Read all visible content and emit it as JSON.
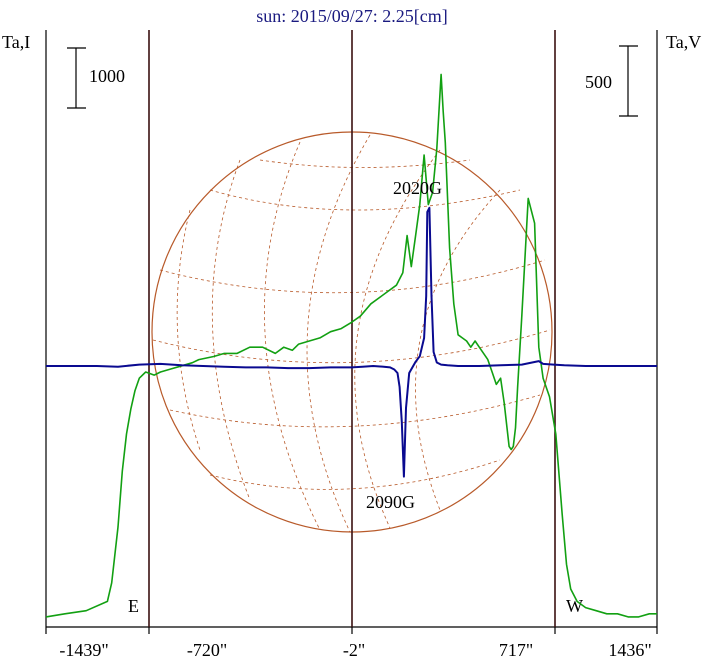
{
  "chart_data": {
    "type": "line",
    "title": "sun: 2015/09/27: 2.25[cm]",
    "left_axis_label": "Ta,I",
    "right_axis_label": "Ta,V",
    "left_scale_bar_label": "1000",
    "right_scale_bar_label": "500",
    "x_tick_labels": [
      "-1439\"",
      "-720\"",
      "-2\"",
      "717\"",
      "1436\""
    ],
    "limb_labels": [
      "E",
      "W"
    ],
    "annotations": [
      "2020G",
      "2090G"
    ],
    "grid": false,
    "colors": {
      "title": "#1a1a80",
      "axes": "#000000",
      "vertical_lines": "#3a1010",
      "intensity": "#12a012",
      "polarization": "#0a0a90",
      "solar_disk": "#b85a2a"
    },
    "series": [
      {
        "x": [
          -1439,
          -1350,
          -1250,
          -1150,
          -1130,
          -1100,
          -1080,
          -1060,
          -1040,
          -1020,
          -1000,
          -970,
          -930,
          -900,
          -850,
          -800,
          -750,
          -720,
          -650,
          -600,
          -540,
          -480,
          -420,
          -360,
          -320,
          -280,
          -250,
          -200,
          -150,
          -100,
          -50,
          -2,
          40,
          90,
          130,
          170,
          210,
          240,
          260,
          280,
          300,
          320,
          340,
          360,
          380,
          400,
          420,
          430,
          440,
          460,
          480,
          500,
          520,
          540,
          560,
          580,
          600,
          620,
          640,
          660,
          680,
          700,
          717,
          730,
          740,
          750,
          760,
          770,
          780,
          800,
          830,
          860,
          880,
          900,
          930,
          960,
          990,
          1010,
          1030,
          1060,
          1100,
          1150,
          1200,
          1250,
          1300,
          1350,
          1400,
          1436
        ],
        "values": [
          0.01,
          0.02,
          0.03,
          0.06,
          0.12,
          0.3,
          0.48,
          0.6,
          0.68,
          0.74,
          0.78,
          0.8,
          0.79,
          0.8,
          0.81,
          0.82,
          0.83,
          0.84,
          0.85,
          0.86,
          0.86,
          0.88,
          0.88,
          0.86,
          0.88,
          0.87,
          0.89,
          0.9,
          0.91,
          0.93,
          0.94,
          0.96,
          0.98,
          1.02,
          1.04,
          1.06,
          1.08,
          1.12,
          1.24,
          1.14,
          1.24,
          1.34,
          1.5,
          1.34,
          1.38,
          1.52,
          1.76,
          1.64,
          1.54,
          1.2,
          1.02,
          0.92,
          0.91,
          0.9,
          0.88,
          0.9,
          0.88,
          0.86,
          0.84,
          0.8,
          0.76,
          0.78,
          0.7,
          0.62,
          0.56,
          0.55,
          0.56,
          0.62,
          0.75,
          0.98,
          1.36,
          1.28,
          0.88,
          0.78,
          0.72,
          0.6,
          0.34,
          0.18,
          0.1,
          0.06,
          0.04,
          0.03,
          0.02,
          0.02,
          0.01,
          0.01,
          0.02,
          0.02
        ]
      },
      {
        "x": [
          -1439,
          -1300,
          -1200,
          -1100,
          -1000,
          -900,
          -800,
          -700,
          -600,
          -500,
          -400,
          -300,
          -200,
          -100,
          0,
          50,
          100,
          150,
          180,
          200,
          215,
          225,
          235,
          245,
          255,
          270,
          300,
          320,
          340,
          350,
          355,
          365,
          375,
          385,
          400,
          420,
          450,
          500,
          600,
          700,
          800,
          880,
          900,
          950,
          1000,
          1100,
          1200,
          1300,
          1436
        ],
        "values": [
          0,
          0,
          0,
          -0.01,
          0.02,
          0.03,
          0.01,
          0,
          -0.01,
          -0.02,
          -0.02,
          -0.03,
          -0.03,
          -0.02,
          -0.02,
          -0.01,
          0,
          -0.01,
          -0.02,
          -0.05,
          -0.1,
          -0.3,
          -0.8,
          -1.58,
          -0.6,
          -0.1,
          0.06,
          0.14,
          0.4,
          1.0,
          2.2,
          2.26,
          1.0,
          0.2,
          0.05,
          0.02,
          0.01,
          0.0,
          0.0,
          0.01,
          0.02,
          0.07,
          0.03,
          0.02,
          0.01,
          0.0,
          0.0,
          0.0,
          0.0
        ]
      }
    ]
  }
}
